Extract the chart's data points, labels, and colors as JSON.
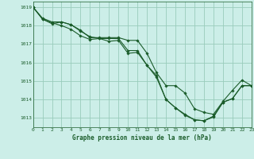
{
  "title": "Graphe pression niveau de la mer (hPa)",
  "bg_color": "#cceee8",
  "grid_color": "#99ccbb",
  "line_color": "#1a5c2a",
  "marker_color": "#1a5c2a",
  "tick_color": "#1a5c2a",
  "title_color": "#1a5c2a",
  "x_ticks": [
    0,
    1,
    2,
    3,
    4,
    5,
    6,
    7,
    8,
    9,
    10,
    11,
    12,
    13,
    14,
    15,
    16,
    17,
    18,
    19,
    20,
    21,
    22,
    23
  ],
  "xlim": [
    0,
    23
  ],
  "ylim": [
    1012.5,
    1019.3
  ],
  "y_ticks": [
    1013,
    1014,
    1015,
    1016,
    1017,
    1018,
    1019
  ],
  "series": [
    [
      1019.0,
      1018.35,
      1018.15,
      1018.0,
      1017.8,
      1017.45,
      1017.25,
      1017.3,
      1017.15,
      1017.2,
      1016.5,
      1016.55,
      1015.85,
      1015.3,
      1014.0,
      1013.55,
      1013.2,
      1012.9,
      1012.85,
      1013.1,
      1013.85,
      1014.05,
      1014.75,
      1014.75
    ],
    [
      1019.0,
      1018.35,
      1018.1,
      1018.2,
      1018.05,
      1017.7,
      1017.4,
      1017.3,
      1017.3,
      1017.3,
      1016.65,
      1016.65,
      1015.85,
      1015.2,
      1014.0,
      1013.55,
      1013.15,
      1012.9,
      1012.85,
      1013.05,
      1013.85,
      1014.05,
      1014.75,
      1014.75
    ],
    [
      1019.0,
      1018.4,
      1018.2,
      1018.2,
      1018.05,
      1017.75,
      1017.35,
      1017.35,
      1017.35,
      1017.35,
      1017.2,
      1017.2,
      1016.5,
      1015.45,
      1014.75,
      1014.75,
      1014.35,
      1013.5,
      1013.3,
      1013.2,
      1013.9,
      1014.5,
      1015.05,
      1014.75
    ]
  ]
}
